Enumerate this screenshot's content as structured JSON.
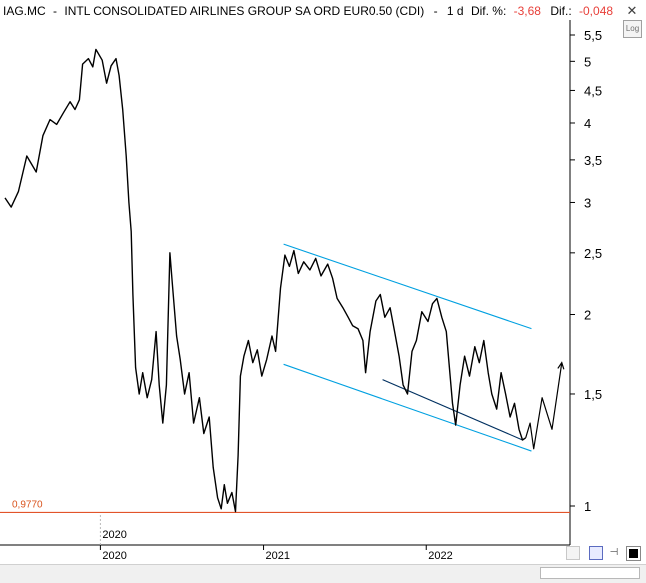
{
  "header": {
    "symbol": "IAG.MC",
    "separator": "-",
    "name": "INTL CONSOLIDATED AIRLINES GROUP SA ORD EUR0.50 (CDI)",
    "dash": "-",
    "period": "1 d",
    "pct_label": "Dif. %:",
    "pct_value": "-3,68",
    "diff_label": "Dif.:",
    "diff_value": "-0,048"
  },
  "log_button": "Log",
  "level_line": {
    "label": "0,9770",
    "value": 0.977,
    "color": "#e2542a"
  },
  "colors": {
    "price": "#000000",
    "channel": "#00a0e0",
    "axis": "#000000",
    "level": "#e2542a"
  },
  "chart_data": {
    "type": "line",
    "title": "IAG.MC - INTL CONSOLIDATED AIRLINES GROUP SA ORD EUR0.50 (CDI)",
    "y_scale": "log",
    "ylim": [
      0.92,
      5.8
    ],
    "y_ticks": [
      1,
      1.5,
      2,
      2.5,
      3,
      3.5,
      4,
      4.5,
      5,
      5.5
    ],
    "y_tick_labels": [
      "1",
      "1,5",
      "2",
      "2,5",
      "3",
      "3,5",
      "4",
      "4,5",
      "5",
      "5,5"
    ],
    "x_tick_labels": [
      "2020",
      "2021",
      "2022"
    ],
    "x_marker_label": "2020",
    "xlim": [
      "2019-06-01",
      "2022-11-15"
    ],
    "x_ticks": [
      "2020-01-01",
      "2021-01-01",
      "2022-01-01"
    ],
    "grid": false,
    "series": [
      {
        "values": [
          [
            "2019-06-01",
            3.05
          ],
          [
            "2019-06-15",
            2.95
          ],
          [
            "2019-07-01",
            3.12
          ],
          [
            "2019-07-20",
            3.55
          ],
          [
            "2019-08-10",
            3.35
          ],
          [
            "2019-08-25",
            3.82
          ],
          [
            "2019-09-10",
            4.05
          ],
          [
            "2019-09-25",
            3.98
          ],
          [
            "2019-10-10",
            4.15
          ],
          [
            "2019-10-25",
            4.32
          ],
          [
            "2019-11-05",
            4.2
          ],
          [
            "2019-11-15",
            4.35
          ],
          [
            "2019-11-22",
            4.95
          ],
          [
            "2019-12-05",
            5.05
          ],
          [
            "2019-12-15",
            4.9
          ],
          [
            "2019-12-22",
            5.22
          ],
          [
            "2020-01-05",
            5.02
          ],
          [
            "2020-01-15",
            4.62
          ],
          [
            "2020-01-25",
            4.92
          ],
          [
            "2020-02-05",
            5.05
          ],
          [
            "2020-02-12",
            4.75
          ],
          [
            "2020-02-20",
            4.2
          ],
          [
            "2020-02-28",
            3.55
          ],
          [
            "2020-03-05",
            3.0
          ],
          [
            "2020-03-10",
            2.7
          ],
          [
            "2020-03-14",
            2.15
          ],
          [
            "2020-03-20",
            1.65
          ],
          [
            "2020-03-28",
            1.5
          ],
          [
            "2020-04-05",
            1.62
          ],
          [
            "2020-04-15",
            1.48
          ],
          [
            "2020-04-25",
            1.58
          ],
          [
            "2020-05-05",
            1.88
          ],
          [
            "2020-05-12",
            1.55
          ],
          [
            "2020-05-20",
            1.35
          ],
          [
            "2020-05-28",
            1.55
          ],
          [
            "2020-06-05",
            2.5
          ],
          [
            "2020-06-10",
            2.25
          ],
          [
            "2020-06-20",
            1.85
          ],
          [
            "2020-06-28",
            1.7
          ],
          [
            "2020-07-08",
            1.5
          ],
          [
            "2020-07-18",
            1.62
          ],
          [
            "2020-07-28",
            1.35
          ],
          [
            "2020-08-10",
            1.48
          ],
          [
            "2020-08-20",
            1.3
          ],
          [
            "2020-09-01",
            1.38
          ],
          [
            "2020-09-10",
            1.15
          ],
          [
            "2020-09-20",
            1.03
          ],
          [
            "2020-09-28",
            0.99
          ],
          [
            "2020-10-05",
            1.08
          ],
          [
            "2020-10-12",
            1.01
          ],
          [
            "2020-10-22",
            1.05
          ],
          [
            "2020-10-30",
            0.98
          ],
          [
            "2020-11-05",
            1.2
          ],
          [
            "2020-11-10",
            1.6
          ],
          [
            "2020-11-18",
            1.72
          ],
          [
            "2020-11-28",
            1.82
          ],
          [
            "2020-12-08",
            1.68
          ],
          [
            "2020-12-18",
            1.76
          ],
          [
            "2020-12-28",
            1.6
          ],
          [
            "2021-01-08",
            1.7
          ],
          [
            "2021-01-20",
            1.85
          ],
          [
            "2021-01-28",
            1.75
          ],
          [
            "2021-02-08",
            2.2
          ],
          [
            "2021-02-18",
            2.48
          ],
          [
            "2021-02-28",
            2.38
          ],
          [
            "2021-03-10",
            2.52
          ],
          [
            "2021-03-20",
            2.32
          ],
          [
            "2021-04-01",
            2.42
          ],
          [
            "2021-04-15",
            2.35
          ],
          [
            "2021-04-28",
            2.45
          ],
          [
            "2021-05-10",
            2.3
          ],
          [
            "2021-05-25",
            2.4
          ],
          [
            "2021-06-05",
            2.28
          ],
          [
            "2021-06-15",
            2.12
          ],
          [
            "2021-06-28",
            2.05
          ],
          [
            "2021-07-10",
            1.98
          ],
          [
            "2021-07-20",
            1.92
          ],
          [
            "2021-08-01",
            1.9
          ],
          [
            "2021-08-12",
            1.82
          ],
          [
            "2021-08-18",
            1.62
          ],
          [
            "2021-08-28",
            1.88
          ],
          [
            "2021-09-10",
            2.1
          ],
          [
            "2021-09-20",
            2.15
          ],
          [
            "2021-09-30",
            1.98
          ],
          [
            "2021-10-12",
            2.05
          ],
          [
            "2021-10-22",
            1.88
          ],
          [
            "2021-11-01",
            1.72
          ],
          [
            "2021-11-10",
            1.55
          ],
          [
            "2021-11-20",
            1.5
          ],
          [
            "2021-11-30",
            1.75
          ],
          [
            "2021-12-10",
            1.82
          ],
          [
            "2021-12-22",
            2.02
          ],
          [
            "2022-01-05",
            1.95
          ],
          [
            "2022-01-15",
            2.08
          ],
          [
            "2022-01-25",
            2.12
          ],
          [
            "2022-02-05",
            1.98
          ],
          [
            "2022-02-15",
            1.88
          ],
          [
            "2022-02-22",
            1.65
          ],
          [
            "2022-03-01",
            1.45
          ],
          [
            "2022-03-08",
            1.34
          ],
          [
            "2022-03-18",
            1.55
          ],
          [
            "2022-03-28",
            1.72
          ],
          [
            "2022-04-08",
            1.6
          ],
          [
            "2022-04-20",
            1.78
          ],
          [
            "2022-04-30",
            1.68
          ],
          [
            "2022-05-10",
            1.82
          ],
          [
            "2022-05-20",
            1.62
          ],
          [
            "2022-05-28",
            1.5
          ],
          [
            "2022-06-08",
            1.42
          ],
          [
            "2022-06-18",
            1.62
          ],
          [
            "2022-06-28",
            1.5
          ],
          [
            "2022-07-08",
            1.38
          ],
          [
            "2022-07-18",
            1.45
          ],
          [
            "2022-07-28",
            1.32
          ],
          [
            "2022-08-05",
            1.27
          ],
          [
            "2022-08-12",
            1.28
          ]
        ]
      },
      {
        "values": [
          [
            "2022-08-12",
            1.28
          ],
          [
            "2022-08-22",
            1.35
          ],
          [
            "2022-08-30",
            1.23
          ],
          [
            "2022-09-18",
            1.48
          ],
          [
            "2022-10-10",
            1.32
          ],
          [
            "2022-11-01",
            1.68
          ]
        ]
      }
    ],
    "trendlines": [
      {
        "from": [
          "2021-02-15",
          2.58
        ],
        "to": [
          "2022-08-25",
          1.9
        ]
      },
      {
        "from": [
          "2021-02-15",
          1.67
        ],
        "to": [
          "2022-08-25",
          1.22
        ]
      },
      {
        "from": [
          "2021-09-25",
          1.58
        ],
        "to": [
          "2022-08-05",
          1.27
        ]
      }
    ],
    "hline": {
      "value": 0.977,
      "label": "0,9770"
    }
  }
}
